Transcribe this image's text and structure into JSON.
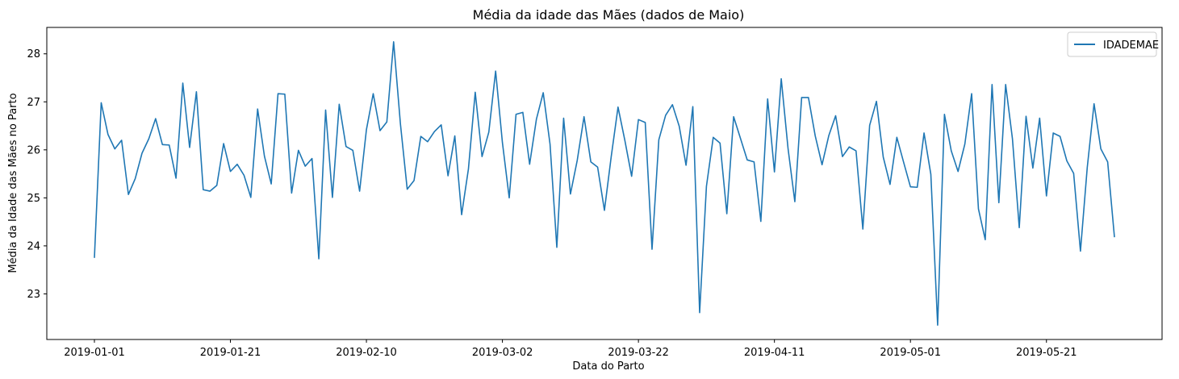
{
  "chart_data": {
    "type": "line",
    "title": "Média da idade das Mães (dados de Maio)",
    "xlabel": "Data do Parto",
    "ylabel": "Média da Idade das Mães no Parto",
    "x_start": "2019-01-01",
    "x_end": "2019-05-31",
    "xlim": [
      "2018-12-25",
      "2019-06-07"
    ],
    "ylim": [
      22.05,
      28.55
    ],
    "x_ticks": [
      "2019-01-01",
      "2019-01-21",
      "2019-02-10",
      "2019-03-02",
      "2019-03-22",
      "2019-04-11",
      "2019-05-01",
      "2019-05-21"
    ],
    "y_ticks": [
      23,
      24,
      25,
      26,
      27,
      28
    ],
    "grid": false,
    "legend_position": "top-right",
    "series": [
      {
        "name": "IDADEMAE",
        "color": "#1f77b4",
        "values": [
          23.75,
          26.98,
          26.32,
          26.02,
          26.2,
          25.07,
          25.4,
          25.93,
          26.23,
          26.65,
          26.11,
          26.1,
          25.41,
          27.39,
          26.05,
          27.21,
          25.17,
          25.14,
          25.26,
          26.13,
          25.55,
          25.7,
          25.47,
          25.01,
          26.85,
          25.87,
          25.29,
          27.17,
          27.16,
          25.1,
          25.99,
          25.66,
          25.82,
          23.73,
          26.83,
          25.01,
          26.95,
          26.07,
          25.99,
          25.14,
          26.42,
          27.17,
          26.4,
          26.58,
          28.25,
          26.54,
          25.18,
          25.36,
          26.28,
          26.17,
          26.38,
          26.52,
          25.46,
          26.29,
          24.65,
          25.6,
          27.2,
          25.86,
          26.37,
          27.64,
          26.15,
          25.0,
          26.74,
          26.78,
          25.7,
          26.64,
          27.19,
          26.12,
          23.97,
          26.66,
          25.08,
          25.78,
          26.69,
          25.75,
          25.64,
          24.74,
          25.86,
          26.89,
          26.2,
          25.45,
          26.63,
          26.57,
          23.93,
          26.21,
          26.72,
          26.94,
          26.49,
          25.68,
          26.9,
          22.61,
          25.24,
          26.26,
          26.14,
          24.67,
          26.69,
          26.24,
          25.79,
          25.75,
          24.51,
          27.06,
          25.54,
          27.48,
          26.03,
          24.92,
          27.09,
          27.09,
          26.29,
          25.69,
          26.3,
          26.71,
          25.86,
          26.06,
          25.98,
          24.35,
          26.51,
          27.01,
          25.85,
          25.28,
          26.26,
          25.74,
          25.23,
          25.22,
          26.35,
          25.49,
          22.35,
          26.74,
          25.98,
          25.55,
          26.12,
          27.17,
          24.77,
          24.13,
          27.36,
          24.9,
          27.36,
          26.23,
          24.38,
          26.7,
          25.62,
          26.66,
          25.04,
          26.35,
          26.28,
          25.77,
          25.51,
          23.89,
          25.63,
          26.96,
          26.02,
          25.75,
          24.18
        ]
      }
    ]
  }
}
